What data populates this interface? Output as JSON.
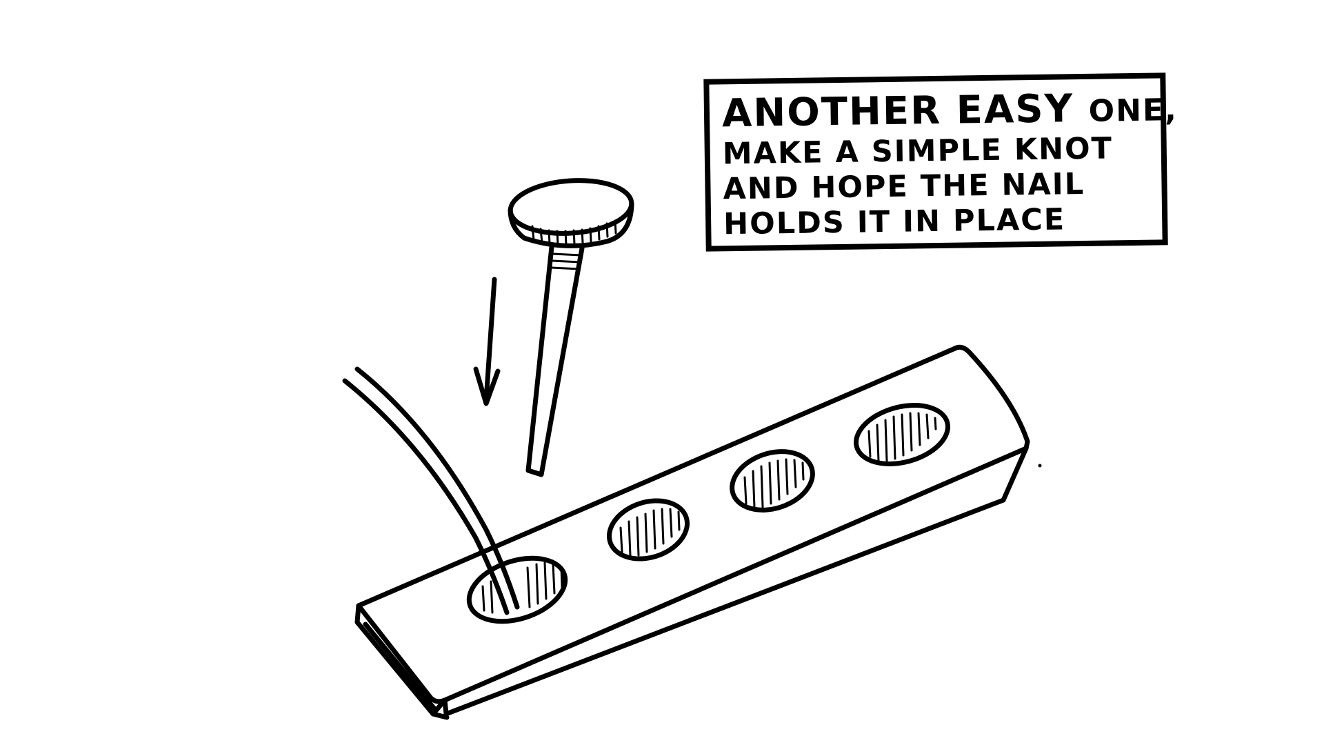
{
  "callout": {
    "line1_big": "ANOTHER EASY",
    "line1_small": "ONE,",
    "line2": "MAKE A SIMPLE KNOT",
    "line3": "AND HOPE THE NAIL",
    "line4": "HOLDS IT IN PLACE"
  },
  "colors": {
    "ink": "#000000",
    "paper": "#ffffff"
  }
}
